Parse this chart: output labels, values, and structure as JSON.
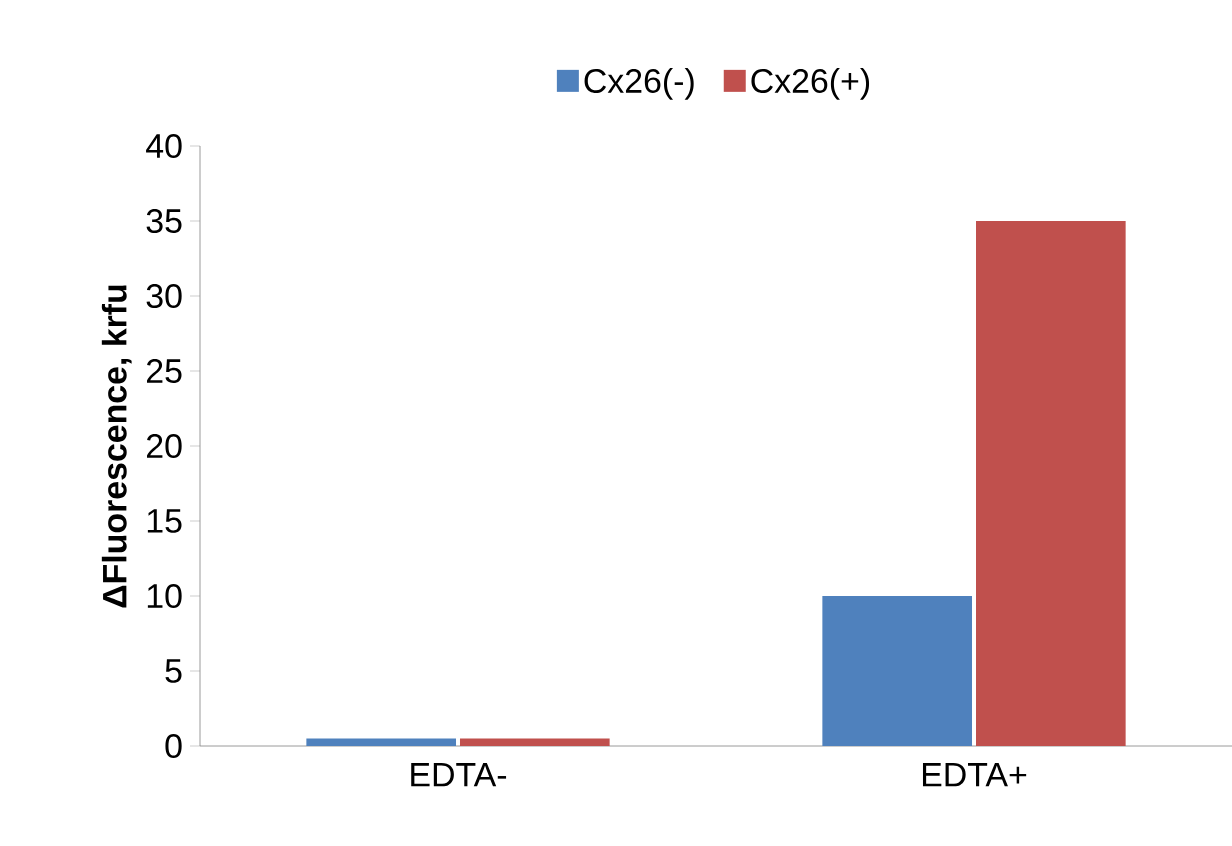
{
  "chart_data": {
    "type": "bar",
    "ylabel": "ΔFluorescence, krfu",
    "categories": [
      "EDTA-",
      "EDTA+"
    ],
    "series": [
      {
        "name": "Cx26(-)",
        "color": "#4f81bd",
        "values": [
          0.5,
          10
        ]
      },
      {
        "name": "Cx26(+)",
        "color": "#c0504d",
        "values": [
          0.5,
          35
        ]
      }
    ],
    "ylim": [
      0,
      40
    ],
    "yticks": [
      0,
      5,
      10,
      15,
      20,
      25,
      30,
      35,
      40
    ],
    "grid": false,
    "legend": "top"
  }
}
